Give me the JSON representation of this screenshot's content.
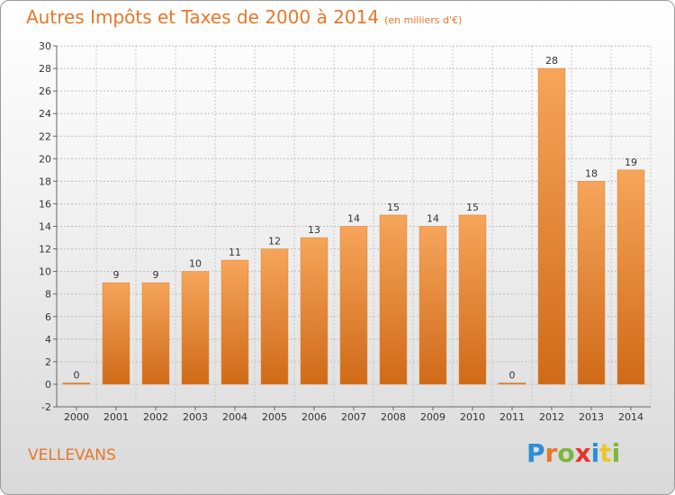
{
  "header": {
    "title": "Autres Impôts et Taxes de 2000 à 2014",
    "unit": "(en milliers d'€)"
  },
  "footer": {
    "commune": "VELLEVANS",
    "logo_letters": [
      "P",
      "r",
      "o",
      "x",
      "i",
      "t",
      "i"
    ],
    "logo_colors": [
      "#2a8fd6",
      "#e8772a",
      "#7ab83a",
      "#e8332a",
      "#2a8fd6",
      "#e8c72a",
      "#7ab83a"
    ]
  },
  "colors": {
    "bar_top": "#f6a55a",
    "bar_bottom": "#cf6a18",
    "accent": "#e8772a"
  },
  "chart_data": {
    "type": "bar",
    "categories": [
      "2000",
      "2001",
      "2002",
      "2003",
      "2004",
      "2005",
      "2006",
      "2007",
      "2008",
      "2009",
      "2010",
      "2011",
      "2012",
      "2013",
      "2014"
    ],
    "values": [
      0,
      9,
      9,
      10,
      11,
      12,
      13,
      14,
      15,
      14,
      15,
      0,
      28,
      18,
      19
    ],
    "ylim": [
      -2,
      30
    ],
    "yticks": [
      -2,
      0,
      2,
      4,
      6,
      8,
      10,
      12,
      14,
      16,
      18,
      20,
      22,
      24,
      26,
      28,
      30
    ],
    "grid": true,
    "legend": "none"
  }
}
